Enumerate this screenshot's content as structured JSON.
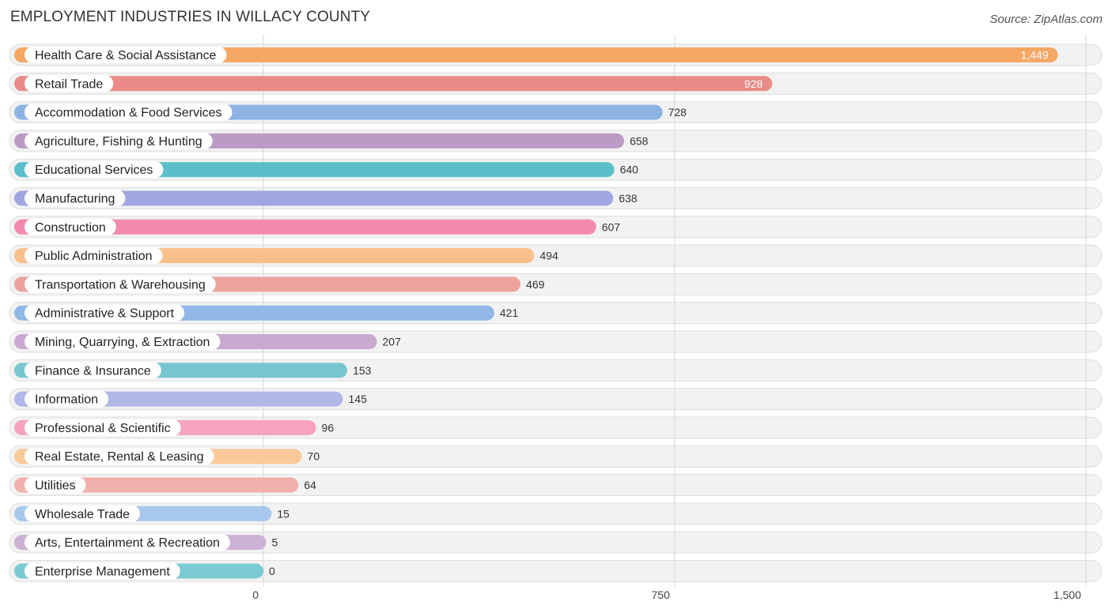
{
  "title": "EMPLOYMENT INDUSTRIES IN WILLACY COUNTY",
  "source": "Source: ZipAtlas.com",
  "chart_data": {
    "type": "bar",
    "orientation": "horizontal",
    "title": "EMPLOYMENT INDUSTRIES IN WILLACY COUNTY",
    "xlabel": "",
    "ylabel": "",
    "xlim": [
      0,
      1500
    ],
    "ticks": [
      0,
      750,
      1500
    ],
    "tick_labels": [
      "0",
      "750",
      "1,500"
    ],
    "grid": true,
    "categories": [
      "Health Care & Social Assistance",
      "Retail Trade",
      "Accommodation & Food Services",
      "Agriculture, Fishing & Hunting",
      "Educational Services",
      "Manufacturing",
      "Construction",
      "Public Administration",
      "Transportation & Warehousing",
      "Administrative & Support",
      "Mining, Quarrying, & Extraction",
      "Finance & Insurance",
      "Information",
      "Professional & Scientific",
      "Real Estate, Rental & Leasing",
      "Utilities",
      "Wholesale Trade",
      "Arts, Entertainment & Recreation",
      "Enterprise Management"
    ],
    "values": [
      1449,
      928,
      728,
      658,
      640,
      638,
      607,
      494,
      469,
      421,
      207,
      153,
      145,
      96,
      70,
      64,
      15,
      5,
      0
    ],
    "value_labels": [
      "1,449",
      "928",
      "728",
      "658",
      "640",
      "638",
      "607",
      "494",
      "469",
      "421",
      "207",
      "153",
      "145",
      "96",
      "70",
      "64",
      "15",
      "5",
      "0"
    ],
    "colors": [
      "#f5a864",
      "#e98b86",
      "#8db3e2",
      "#bb9bc6",
      "#5bbfc9",
      "#9fa6e0",
      "#f28aae",
      "#f9c08c",
      "#eca39d",
      "#91b8e6",
      "#c9a9cf",
      "#78c6cf",
      "#b1b7e8",
      "#f5a3c0",
      "#f9c999",
      "#f1b0ac",
      "#a7c7ec",
      "#cdb1d5",
      "#7ccad1"
    ]
  }
}
